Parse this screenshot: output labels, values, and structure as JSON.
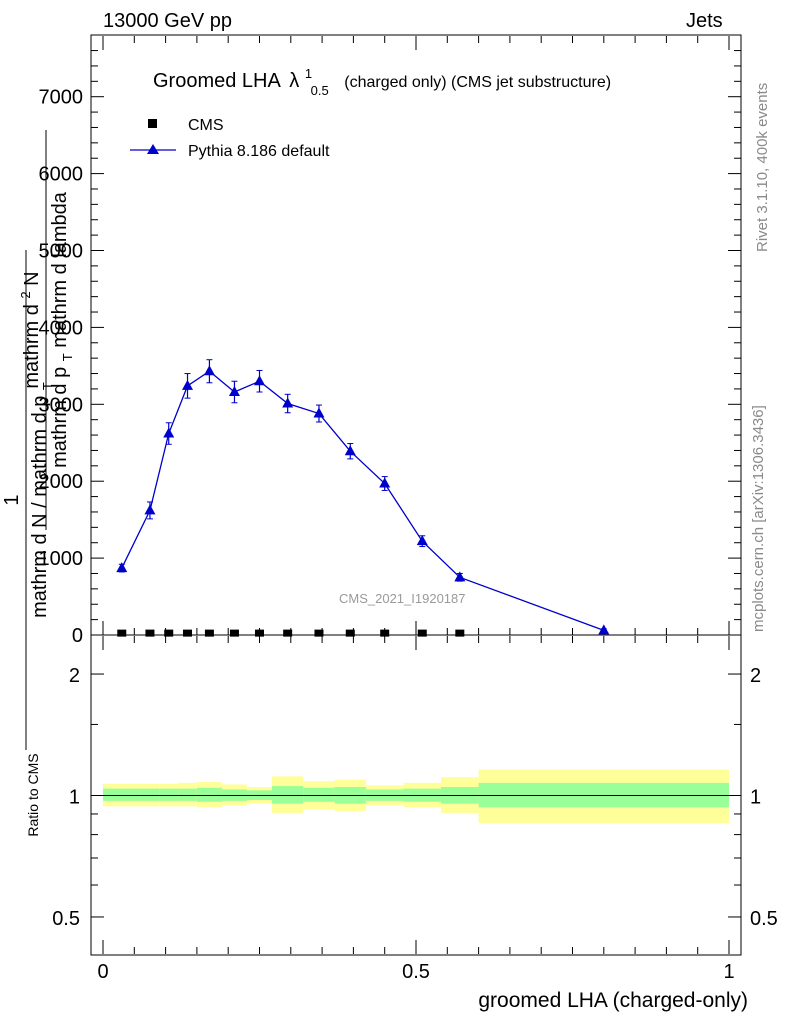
{
  "header": {
    "left_label": "13000 GeV pp",
    "right_label": "Jets"
  },
  "side": {
    "rivet": "Rivet 3.1.10,  400k events",
    "mcplots": "mcplots.cern.ch [arXiv:1306.3436]"
  },
  "chart_data": [
    {
      "type": "line",
      "panel": "main",
      "title": "Groomed LHA",
      "title_symbol": "λ",
      "title_sup": "1",
      "title_sub": "0.5",
      "title_suffix": "(charged only) (CMS jet substructure)",
      "watermark": "CMS_2021_I1920187",
      "ylabel": "1 / mathrm d N / mathrm d p_T  mathrm d^2N / mathrm d p_T mathrm d lambda",
      "ylabel_parts": {
        "numerator_top": "1",
        "denominator_top": "mathrm d N / mathrm d p",
        "denominator_top_sub": "T",
        "numerator_bottom": "mathrm d",
        "numerator_bottom_sup": "2",
        "numerator_bottom_rest": "N",
        "denominator_bottom": "mathrm d p",
        "denominator_bottom_sub": "T",
        "denominator_bottom_rest": " mathrm d lambda"
      },
      "xlim": [
        0,
        1
      ],
      "ylim": [
        0,
        7800
      ],
      "yticks": [
        0,
        1000,
        2000,
        3000,
        4000,
        5000,
        6000,
        7000
      ],
      "ytick_labels": [
        "0",
        "1000",
        "2000",
        "3000",
        "4000",
        "5000",
        "6000",
        "7000"
      ],
      "legend": [
        {
          "name": "CMS",
          "marker": "square",
          "color": "#000000"
        },
        {
          "name": "Pythia 8.186 default",
          "marker": "triangle",
          "color": "#0000cc"
        }
      ],
      "series": [
        {
          "name": "CMS",
          "x": [
            0.03,
            0.075,
            0.105,
            0.135,
            0.17,
            0.21,
            0.25,
            0.295,
            0.345,
            0.395,
            0.45,
            0.51,
            0.57
          ],
          "y": [
            5,
            5,
            5,
            5,
            5,
            5,
            5,
            5,
            5,
            5,
            5,
            5,
            5
          ]
        },
        {
          "name": "Pythia 8.186 default",
          "x": [
            0.03,
            0.075,
            0.105,
            0.135,
            0.17,
            0.21,
            0.25,
            0.295,
            0.345,
            0.395,
            0.45,
            0.51,
            0.57,
            0.8
          ],
          "y": [
            870,
            1620,
            2620,
            3240,
            3430,
            3160,
            3300,
            3010,
            2880,
            2390,
            1970,
            1220,
            750,
            60
          ],
          "err": [
            50,
            110,
            140,
            160,
            150,
            140,
            140,
            120,
            110,
            100,
            90,
            70,
            50,
            20
          ]
        }
      ]
    },
    {
      "type": "area",
      "panel": "ratio",
      "ylabel": "Ratio to CMS",
      "xlabel": "groomed LHA (charged-only)",
      "xlim": [
        0,
        1
      ],
      "ylim": [
        0.4,
        2.4
      ],
      "log_y": true,
      "yticks": [
        0.5,
        1,
        2
      ],
      "ytick_labels": [
        "0.5",
        "1",
        "2"
      ],
      "xticks": [
        0,
        0.5,
        1
      ],
      "xtick_labels": [
        "0",
        "0.5",
        "1"
      ],
      "bins": [
        {
          "lo": 0.0,
          "hi": 0.06,
          "inner": [
            0.97,
            1.04
          ],
          "outer": [
            0.94,
            1.07
          ]
        },
        {
          "lo": 0.06,
          "hi": 0.09,
          "inner": [
            0.97,
            1.04
          ],
          "outer": [
            0.94,
            1.07
          ]
        },
        {
          "lo": 0.09,
          "hi": 0.12,
          "inner": [
            0.97,
            1.04
          ],
          "outer": [
            0.94,
            1.07
          ]
        },
        {
          "lo": 0.12,
          "hi": 0.15,
          "inner": [
            0.97,
            1.04
          ],
          "outer": [
            0.94,
            1.075
          ]
        },
        {
          "lo": 0.15,
          "hi": 0.19,
          "inner": [
            0.965,
            1.045
          ],
          "outer": [
            0.935,
            1.08
          ]
        },
        {
          "lo": 0.19,
          "hi": 0.23,
          "inner": [
            0.97,
            1.035
          ],
          "outer": [
            0.945,
            1.065
          ]
        },
        {
          "lo": 0.23,
          "hi": 0.27,
          "inner": [
            0.975,
            1.03
          ],
          "outer": [
            0.955,
            1.05
          ]
        },
        {
          "lo": 0.27,
          "hi": 0.32,
          "inner": [
            0.955,
            1.055
          ],
          "outer": [
            0.905,
            1.115
          ]
        },
        {
          "lo": 0.32,
          "hi": 0.37,
          "inner": [
            0.965,
            1.045
          ],
          "outer": [
            0.925,
            1.085
          ]
        },
        {
          "lo": 0.37,
          "hi": 0.42,
          "inner": [
            0.955,
            1.05
          ],
          "outer": [
            0.915,
            1.095
          ]
        },
        {
          "lo": 0.42,
          "hi": 0.48,
          "inner": [
            0.97,
            1.035
          ],
          "outer": [
            0.945,
            1.06
          ]
        },
        {
          "lo": 0.48,
          "hi": 0.54,
          "inner": [
            0.965,
            1.04
          ],
          "outer": [
            0.935,
            1.075
          ]
        },
        {
          "lo": 0.54,
          "hi": 0.6,
          "inner": [
            0.955,
            1.05
          ],
          "outer": [
            0.905,
            1.11
          ]
        },
        {
          "lo": 0.6,
          "hi": 1.0,
          "inner": [
            0.935,
            1.075
          ],
          "outer": [
            0.855,
            1.16
          ]
        }
      ]
    }
  ]
}
